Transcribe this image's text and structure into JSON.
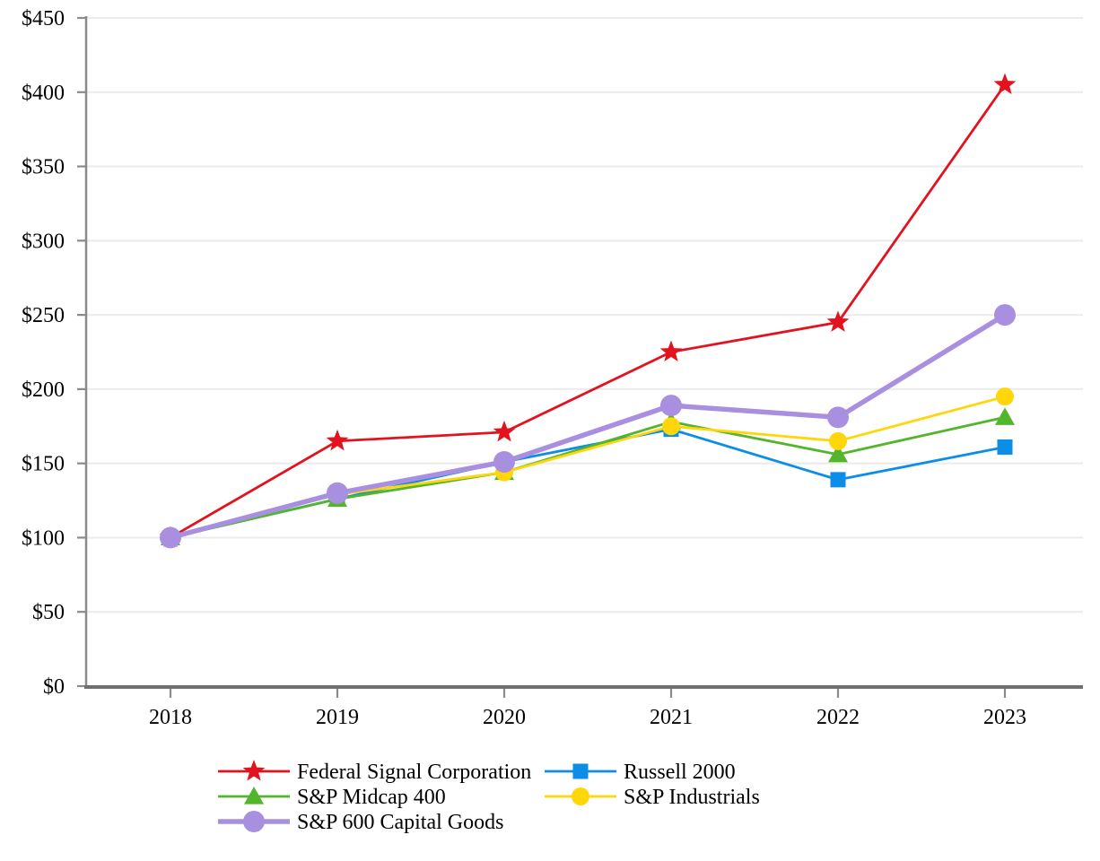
{
  "chart_data": {
    "type": "line",
    "title": "",
    "x": [
      2018,
      2019,
      2020,
      2021,
      2022,
      2023
    ],
    "x_tick_labels": [
      "2018",
      "2019",
      "2020",
      "2021",
      "2022",
      "2023"
    ],
    "y_ticks": [
      0,
      50,
      100,
      150,
      200,
      250,
      300,
      350,
      400,
      450
    ],
    "y_tick_labels": [
      "$0",
      "$50",
      "$100",
      "$150",
      "$200",
      "$250",
      "$300",
      "$350",
      "$400",
      "$450"
    ],
    "ylim": [
      0,
      450
    ],
    "grid": "horizontal-light",
    "legend_position": "bottom-two-columns",
    "series": [
      {
        "name": "Federal Signal Corporation",
        "color": "#E2121E",
        "marker": "star",
        "line_width": 2.8,
        "marker_size": 13,
        "values": [
          100,
          165,
          171,
          225,
          245,
          405
        ]
      },
      {
        "name": "Russell 2000",
        "color": "#0B8DE8",
        "marker": "square",
        "line_width": 2.8,
        "marker_size": 8.5,
        "values": [
          100,
          126,
          151,
          173,
          139,
          161
        ]
      },
      {
        "name": "S&P Midcap 400",
        "color": "#52B52C",
        "marker": "triangle",
        "line_width": 2.8,
        "marker_size": 11,
        "values": [
          100,
          126,
          144,
          178,
          156,
          181
        ]
      },
      {
        "name": "S&P Industrials",
        "color": "#FFD60A",
        "marker": "circle",
        "line_width": 2.8,
        "marker_size": 10,
        "values": [
          100,
          129,
          144,
          175,
          165,
          195
        ]
      },
      {
        "name": "S&P 600 Capital Goods",
        "color": "#A98FE0",
        "marker": "circle",
        "line_width": 5.5,
        "marker_size": 12,
        "values": [
          100,
          130,
          151,
          189,
          181,
          250
        ]
      }
    ],
    "legend": {
      "columns": [
        [
          0,
          2,
          4
        ],
        [
          1,
          3
        ]
      ]
    }
  },
  "axis_style": {
    "grid_color": "#ebebeb",
    "spine_color": "#8a8a8a",
    "baseline_color": "#6f6f6f",
    "tick_color": "#8a8a8a",
    "text_color": "#000000"
  }
}
